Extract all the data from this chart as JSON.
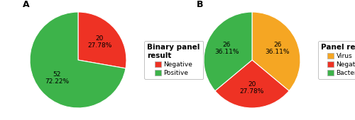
{
  "chartA": {
    "label": "A",
    "slices": [
      {
        "value": 20,
        "pct": "27.78%",
        "color": "#ee3224",
        "name": "Negative"
      },
      {
        "value": 52,
        "pct": "72.22%",
        "color": "#3db34a",
        "name": "Positive"
      }
    ],
    "legend_title": "Binary panel\nresult",
    "startangle": 90
  },
  "chartB": {
    "label": "B",
    "slices": [
      {
        "value": 26,
        "pct": "36.11%",
        "color": "#f5a623",
        "name": "Virus"
      },
      {
        "value": 20,
        "pct": "27.78%",
        "color": "#ee3224",
        "name": "Negative"
      },
      {
        "value": 26,
        "pct": "36.11%",
        "color": "#3db34a",
        "name": "Bacteria"
      }
    ],
    "legend_title": "Panel result",
    "startangle": 90
  },
  "background_color": "#ffffff",
  "label_fontsize": 6.5,
  "panel_label_fontsize": 9,
  "legend_fontsize": 6.5,
  "legend_title_fontsize": 7.5
}
